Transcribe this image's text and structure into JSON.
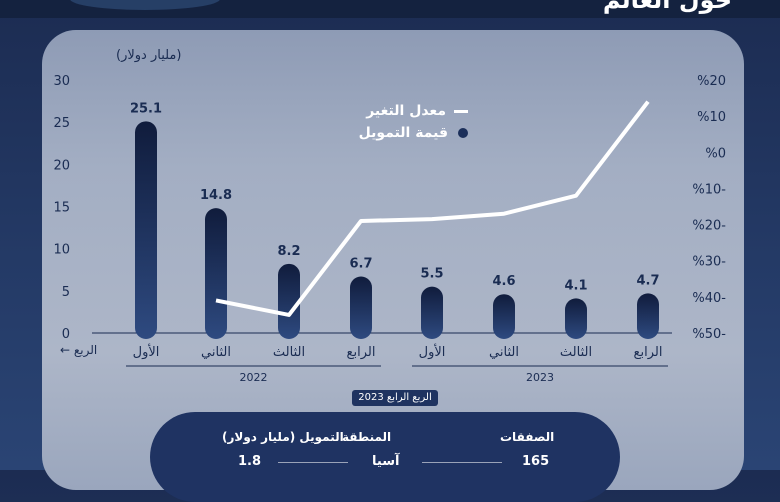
{
  "header": {
    "title": "حول العالم"
  },
  "legend": {
    "line_label": "معدل التغير",
    "bar_label": "قيمة التمويل"
  },
  "axis": {
    "y_unit": "(مليار دولار)",
    "quarter_arrow": "الربع ←"
  },
  "badge": {
    "period": "الربع الرابع 2023"
  },
  "summary": {
    "deals_label": "الصفقات",
    "deals_value": "165",
    "region_label": "المنطقة",
    "region_value": "آسيا",
    "funding_label": "التمويل (مليار دولار)",
    "funding_value": "1.8"
  },
  "colors": {
    "panel": "#a3aec3",
    "bar_top": "#101c3c",
    "bar_bottom": "#2e4a80",
    "line": "#ffffff",
    "axis_text": "#1a2c52"
  },
  "chart_data": {
    "type": "bar",
    "categories": [
      "الأول",
      "الثاني",
      "الثالث",
      "الرابع",
      "الأول",
      "الثاني",
      "الثالث",
      "الرابع"
    ],
    "year_groups": [
      {
        "label": "2022",
        "from": 0,
        "to": 3
      },
      {
        "label": "2023",
        "from": 4,
        "to": 7
      }
    ],
    "series": [
      {
        "name": "قيمة التمويل",
        "type": "bar",
        "axis": "left",
        "values": [
          25.1,
          14.8,
          8.2,
          6.7,
          5.5,
          4.6,
          4.1,
          4.7
        ],
        "labels": [
          "25.1",
          "14.8",
          "8.2",
          "6.7",
          "5.5",
          "4.6",
          "4.1",
          "4.7"
        ]
      },
      {
        "name": "معدل التغير",
        "type": "line",
        "axis": "right",
        "values": [
          null,
          -41,
          -45,
          -19,
          -18.5,
          -17,
          -12,
          14
        ]
      }
    ],
    "y_left": {
      "range": [
        0,
        30
      ],
      "ticks": [
        "0",
        "5",
        "10",
        "15",
        "20",
        "25",
        "30"
      ]
    },
    "y_right": {
      "range": [
        -50,
        20
      ],
      "ticks": [
        "%50-",
        "%40-",
        "%30-",
        "%20-",
        "%10-",
        "%0",
        "%10",
        "%20"
      ]
    },
    "ylabel": "(مليار دولار)",
    "grid": false,
    "legend_position": "top-center"
  }
}
